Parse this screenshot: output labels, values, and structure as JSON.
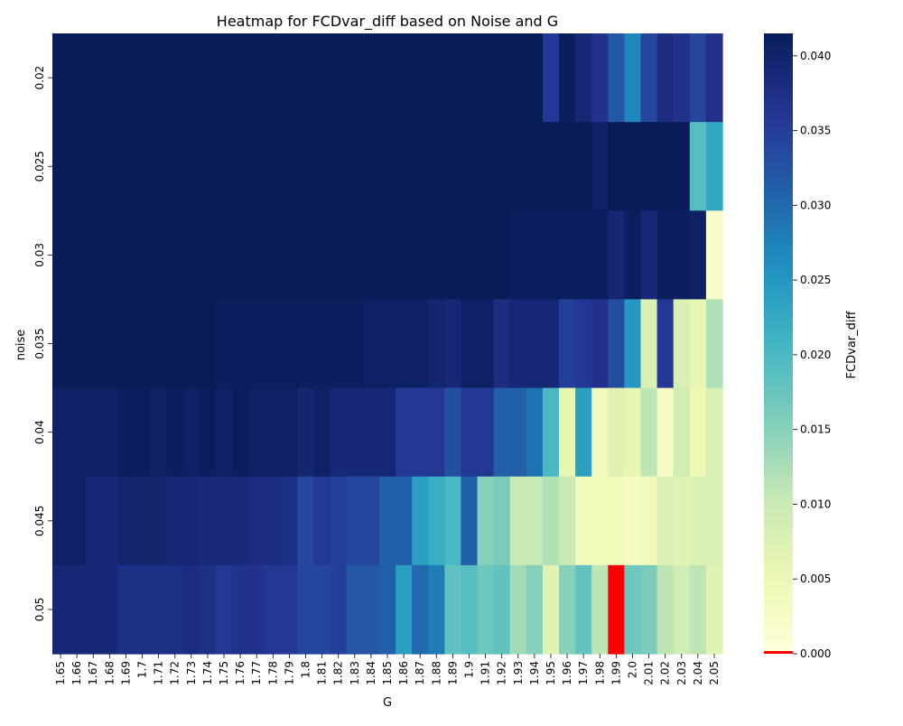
{
  "chart_data": {
    "type": "heatmap",
    "title": "Heatmap for FCDvar_diff based on Noise and G",
    "xlabel": "G",
    "ylabel": "noise",
    "x": [
      "1.65",
      "1.66",
      "1.67",
      "1.68",
      "1.69",
      "1.7",
      "1.71",
      "1.72",
      "1.73",
      "1.74",
      "1.75",
      "1.76",
      "1.77",
      "1.78",
      "1.79",
      "1.8",
      "1.81",
      "1.82",
      "1.83",
      "1.84",
      "1.85",
      "1.86",
      "1.87",
      "1.88",
      "1.89",
      "1.9",
      "1.91",
      "1.92",
      "1.93",
      "1.94",
      "1.95",
      "1.96",
      "1.97",
      "1.98",
      "1.99",
      "2.0",
      "2.01",
      "2.02",
      "2.03",
      "2.04",
      "2.05"
    ],
    "y": [
      "0.02",
      "0.025",
      "0.03",
      "0.035",
      "0.04",
      "0.045",
      "0.05"
    ],
    "values": [
      [
        0.0415,
        0.0415,
        0.0415,
        0.0415,
        0.0415,
        0.0415,
        0.0415,
        0.0415,
        0.0415,
        0.0415,
        0.0415,
        0.0415,
        0.0415,
        0.0415,
        0.0415,
        0.0415,
        0.0415,
        0.0415,
        0.0415,
        0.0415,
        0.0415,
        0.0415,
        0.0415,
        0.0415,
        0.0415,
        0.0415,
        0.0415,
        0.0415,
        0.0415,
        0.0415,
        0.036,
        0.041,
        0.039,
        0.037,
        0.032,
        0.027,
        0.034,
        0.038,
        0.037,
        0.034,
        0.037
      ],
      [
        0.0415,
        0.0415,
        0.0415,
        0.0415,
        0.0415,
        0.0415,
        0.0415,
        0.0415,
        0.0415,
        0.0415,
        0.0415,
        0.0415,
        0.0415,
        0.0415,
        0.0415,
        0.0415,
        0.0415,
        0.0415,
        0.0415,
        0.0415,
        0.0415,
        0.0415,
        0.0415,
        0.0415,
        0.0415,
        0.0415,
        0.0415,
        0.0415,
        0.0415,
        0.0415,
        0.0415,
        0.0415,
        0.0415,
        0.0405,
        0.0415,
        0.0415,
        0.0415,
        0.0415,
        0.0415,
        0.019,
        0.023
      ],
      [
        0.0415,
        0.0415,
        0.0415,
        0.0415,
        0.0415,
        0.0415,
        0.0415,
        0.0415,
        0.0415,
        0.0415,
        0.0415,
        0.0415,
        0.0415,
        0.0415,
        0.0415,
        0.0415,
        0.0415,
        0.0415,
        0.0415,
        0.0415,
        0.0415,
        0.0415,
        0.0415,
        0.0415,
        0.0415,
        0.0415,
        0.0415,
        0.0415,
        0.041,
        0.041,
        0.041,
        0.041,
        0.041,
        0.041,
        0.039,
        0.041,
        0.039,
        0.041,
        0.041,
        0.0405,
        0.002
      ],
      [
        0.0415,
        0.0415,
        0.0415,
        0.0415,
        0.0415,
        0.0415,
        0.0415,
        0.0415,
        0.0415,
        0.0415,
        0.041,
        0.041,
        0.041,
        0.041,
        0.041,
        0.041,
        0.041,
        0.041,
        0.041,
        0.0405,
        0.0405,
        0.0405,
        0.0405,
        0.0395,
        0.039,
        0.0405,
        0.0405,
        0.038,
        0.039,
        0.039,
        0.039,
        0.035,
        0.036,
        0.037,
        0.033,
        0.025,
        0.008,
        0.036,
        0.008,
        0.006,
        0.012
      ],
      [
        0.0405,
        0.0405,
        0.0405,
        0.0405,
        0.041,
        0.041,
        0.0405,
        0.041,
        0.0405,
        0.041,
        0.0405,
        0.041,
        0.0405,
        0.0405,
        0.0405,
        0.0395,
        0.0405,
        0.039,
        0.039,
        0.039,
        0.039,
        0.036,
        0.036,
        0.036,
        0.033,
        0.036,
        0.036,
        0.031,
        0.031,
        0.029,
        0.02,
        0.006,
        0.024,
        0.004,
        0.007,
        0.006,
        0.011,
        0.003,
        0.009,
        0.005,
        0.008
      ],
      [
        0.0405,
        0.0405,
        0.039,
        0.039,
        0.0395,
        0.0395,
        0.0395,
        0.039,
        0.039,
        0.0385,
        0.0385,
        0.0385,
        0.038,
        0.038,
        0.0375,
        0.034,
        0.036,
        0.035,
        0.034,
        0.034,
        0.031,
        0.031,
        0.024,
        0.022,
        0.02,
        0.031,
        0.015,
        0.016,
        0.01,
        0.01,
        0.012,
        0.01,
        0.004,
        0.004,
        0.004,
        0.003,
        0.004,
        0.008,
        0.007,
        0.008,
        0.008
      ],
      [
        0.039,
        0.039,
        0.039,
        0.039,
        0.0375,
        0.0375,
        0.0375,
        0.0375,
        0.038,
        0.0375,
        0.036,
        0.037,
        0.037,
        0.036,
        0.036,
        0.034,
        0.034,
        0.035,
        0.032,
        0.032,
        0.031,
        0.024,
        0.03,
        0.028,
        0.018,
        0.019,
        0.017,
        0.018,
        0.013,
        0.015,
        0.007,
        0.015,
        0.018,
        0.011,
        0.0,
        0.017,
        0.016,
        0.011,
        0.009,
        0.011,
        0.007
      ]
    ],
    "colorbar": {
      "label": "FCDvar_diff",
      "min": 0.0,
      "max": 0.0415,
      "ticks": [
        "0.000",
        "0.005",
        "0.010",
        "0.015",
        "0.020",
        "0.025",
        "0.030",
        "0.035",
        "0.040"
      ],
      "tick_values": [
        0.0,
        0.005,
        0.01,
        0.015,
        0.02,
        0.025,
        0.03,
        0.035,
        0.04
      ],
      "colormap": "YlGnBu",
      "special_marker": {
        "value": 0.0,
        "color": "#ff0000"
      }
    }
  }
}
